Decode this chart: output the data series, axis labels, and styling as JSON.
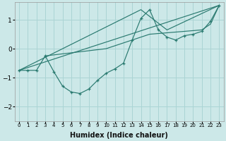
{
  "xlabel": "Humidex (Indice chaleur)",
  "background_color": "#cce8e8",
  "grid_color": "#aad4d4",
  "line_color": "#2a7a70",
  "ylim": [
    -2.5,
    1.6
  ],
  "xlim": [
    -0.5,
    23.5
  ],
  "yticks": [
    -2,
    -1,
    0,
    1
  ],
  "y_main": [
    -0.75,
    -0.75,
    -0.75,
    -0.25,
    -0.8,
    -1.3,
    -1.5,
    -1.55,
    -1.4,
    -1.1,
    -0.85,
    -0.7,
    -0.5,
    0.3,
    1.05,
    1.35,
    0.65,
    0.4,
    0.3,
    0.45,
    0.5,
    0.6,
    0.95,
    1.5
  ],
  "straight_line_x": [
    0,
    23
  ],
  "straight_line_y": [
    -0.75,
    1.5
  ],
  "peak_line_x": [
    0,
    14,
    17,
    23
  ],
  "peak_line_y": [
    -0.75,
    1.35,
    0.65,
    1.5
  ],
  "third_line_x": [
    3,
    10,
    13,
    15,
    17,
    19,
    21,
    22,
    23
  ],
  "third_line_y": [
    -0.25,
    0.0,
    0.3,
    0.5,
    0.55,
    0.6,
    0.65,
    0.85,
    1.5
  ]
}
